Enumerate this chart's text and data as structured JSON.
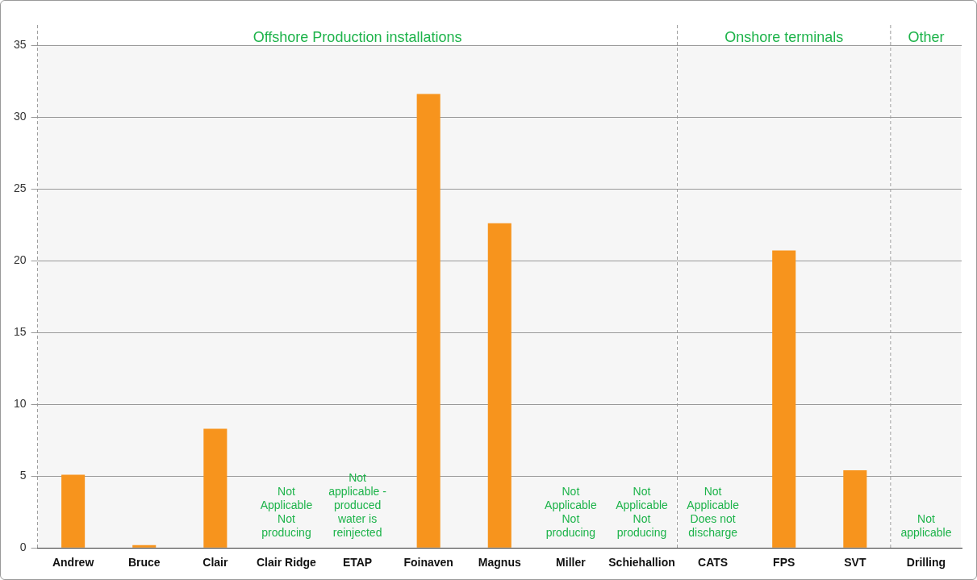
{
  "chart_data": {
    "type": "bar",
    "categories": [
      "Andrew",
      "Bruce",
      "Clair",
      "Clair Ridge",
      "ETAP",
      "Foinaven",
      "Magnus",
      "Miller",
      "Schiehallion",
      "CATS",
      "FPS",
      "SVT",
      "Drilling"
    ],
    "series": [
      {
        "color": "#f7941d",
        "values": [
          5.1,
          0.2,
          8.3,
          null,
          null,
          31.6,
          22.6,
          null,
          null,
          null,
          20.7,
          5.4,
          null
        ]
      }
    ],
    "ylim": [
      0,
      35
    ],
    "yticks": [
      0,
      5,
      10,
      15,
      20,
      25,
      30,
      35
    ],
    "grid": "y",
    "legend": false,
    "bands": [
      {
        "axis": "x",
        "from": "Andrew",
        "to": "Schiehallion",
        "label": "Offshore Production installations",
        "color": "#f6f6f6"
      },
      {
        "axis": "x",
        "from": "CATS",
        "to": "SVT",
        "label": "Onshore terminals",
        "color": "#f6f6f6"
      },
      {
        "axis": "x",
        "from": "Drilling",
        "to": "Drilling",
        "label": "Other",
        "color": "#f6f6f6"
      }
    ],
    "annotations": [
      "Not\nApplicable\nNot\nproducing",
      "Not\napplicable -\nproduced\nwater is\nreinjected",
      "Not\nApplicable\nNot\nproducing",
      "Not\nApplicable\nNot\nproducing",
      "Not\nApplicable\nDoes not\ndischarge",
      "Not\napplicable"
    ]
  }
}
